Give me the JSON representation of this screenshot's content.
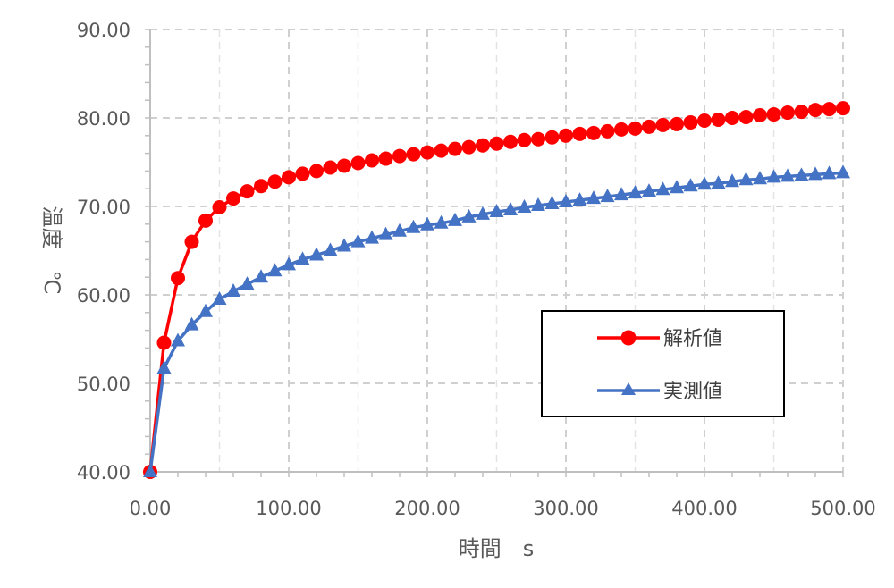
{
  "chart_data": {
    "type": "line",
    "title": "",
    "xlabel": "時間　s",
    "ylabel": "温度　℃",
    "xlim": [
      0,
      500
    ],
    "ylim": [
      40,
      90
    ],
    "x_ticks": [
      "0.00",
      "100.00",
      "200.00",
      "300.00",
      "400.00",
      "500.00"
    ],
    "y_ticks": [
      "40.00",
      "50.00",
      "60.00",
      "70.00",
      "80.00",
      "90.00"
    ],
    "grid": true,
    "legend_position": "right-middle",
    "x": [
      0,
      10,
      20,
      30,
      40,
      50,
      60,
      70,
      80,
      90,
      100,
      110,
      120,
      130,
      140,
      150,
      160,
      170,
      180,
      190,
      200,
      210,
      220,
      230,
      240,
      250,
      260,
      270,
      280,
      290,
      300,
      310,
      320,
      330,
      340,
      350,
      360,
      370,
      380,
      390,
      400,
      410,
      420,
      430,
      440,
      450,
      460,
      470,
      480,
      490,
      500
    ],
    "series": [
      {
        "name": "解析値",
        "color": "#ff0000",
        "marker": "circle",
        "values": [
          40.0,
          54.6,
          61.9,
          66.0,
          68.4,
          69.9,
          70.9,
          71.7,
          72.3,
          72.8,
          73.3,
          73.7,
          74.0,
          74.4,
          74.6,
          74.9,
          75.2,
          75.4,
          75.7,
          75.9,
          76.1,
          76.3,
          76.5,
          76.7,
          76.9,
          77.1,
          77.3,
          77.5,
          77.6,
          77.8,
          78.0,
          78.2,
          78.3,
          78.5,
          78.7,
          78.8,
          79.0,
          79.2,
          79.3,
          79.5,
          79.7,
          79.8,
          80.0,
          80.1,
          80.3,
          80.4,
          80.6,
          80.7,
          80.9,
          81.0,
          81.1
        ]
      },
      {
        "name": "実測値",
        "color": "#4472c4",
        "marker": "triangle",
        "values": [
          40.0,
          51.7,
          54.8,
          56.6,
          58.1,
          59.5,
          60.4,
          61.2,
          62.0,
          62.7,
          63.4,
          64.0,
          64.5,
          65.0,
          65.5,
          66.0,
          66.4,
          66.8,
          67.2,
          67.6,
          67.9,
          68.1,
          68.4,
          68.8,
          69.1,
          69.4,
          69.6,
          69.9,
          70.1,
          70.3,
          70.5,
          70.7,
          70.9,
          71.1,
          71.3,
          71.5,
          71.7,
          71.9,
          72.1,
          72.3,
          72.5,
          72.6,
          72.8,
          73.0,
          73.1,
          73.3,
          73.4,
          73.5,
          73.6,
          73.7,
          73.8
        ]
      }
    ]
  }
}
